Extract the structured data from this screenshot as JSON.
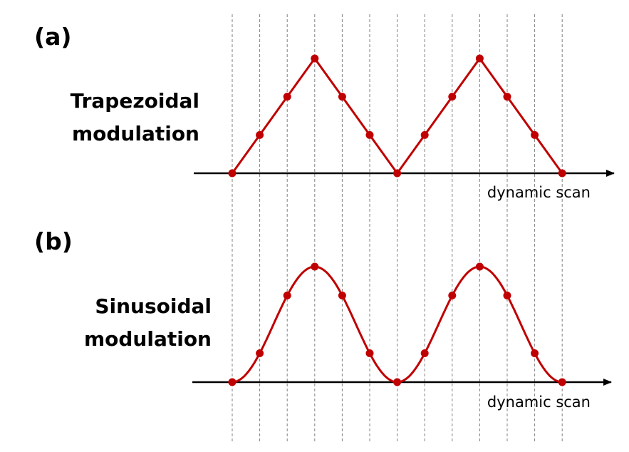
{
  "colors": {
    "curve": "#c00000",
    "axis": "#000000",
    "grid": "#808080"
  },
  "panels": [
    {
      "label": "(a)",
      "title_lines": [
        "Trapezoidal",
        "modulation"
      ],
      "axis_label": "dynamic scan"
    },
    {
      "label": "(b)",
      "title_lines": [
        "Sinusoidal",
        "modulation"
      ],
      "axis_label": "dynamic scan"
    }
  ],
  "chart_data": [
    {
      "type": "line",
      "x": [
        0,
        1,
        2,
        3,
        4,
        5,
        6,
        7,
        8,
        9,
        10,
        11,
        12
      ],
      "values": [
        0,
        0.333,
        0.667,
        1,
        0.667,
        0.333,
        0,
        0.333,
        0.667,
        1,
        0.667,
        0.333,
        0
      ]
    },
    {
      "type": "line",
      "x": [
        0,
        1,
        2,
        3,
        4,
        5,
        6,
        7,
        8,
        9,
        10,
        11,
        12
      ],
      "values": [
        0,
        0.25,
        0.75,
        1,
        0.75,
        0.25,
        0,
        0.25,
        0.75,
        1,
        0.75,
        0.25,
        0
      ]
    }
  ]
}
